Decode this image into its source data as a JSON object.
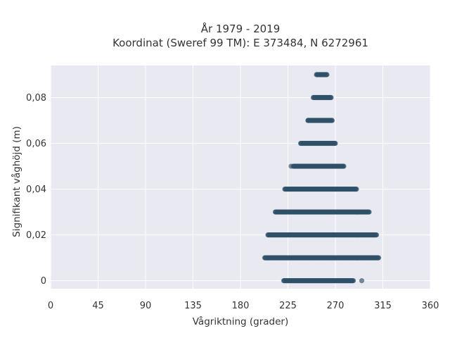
{
  "chart_data": {
    "type": "scatter",
    "title_line1": "År 1979 - 2019",
    "title_line2": "Koordinat (Sweref 99 TM): E 373484, N 6272961",
    "xlabel": "Vågriktning (grader)",
    "ylabel": "Signifikant våghöjd (m)",
    "xlim": [
      0,
      360
    ],
    "ylim": [
      -0.0035,
      0.094
    ],
    "xticks": [
      0,
      45,
      90,
      135,
      180,
      225,
      270,
      315,
      360
    ],
    "xtick_labels": [
      "0",
      "45",
      "90",
      "135",
      "180",
      "225",
      "270",
      "315",
      "360"
    ],
    "yticks": [
      0,
      0.02,
      0.04,
      0.06,
      0.08
    ],
    "ytick_labels": [
      "0",
      "0,02",
      "0,04",
      "0,06",
      "0,08"
    ],
    "grid": true,
    "marker_color": "#2f5168",
    "background_color": "#e9e9f1",
    "bands": [
      {
        "y": 0.0,
        "x_min": 221,
        "x_max": 287
      },
      {
        "y": 0.01,
        "x_min": 203,
        "x_max": 311
      },
      {
        "y": 0.02,
        "x_min": 206,
        "x_max": 309
      },
      {
        "y": 0.03,
        "x_min": 213,
        "x_max": 302
      },
      {
        "y": 0.04,
        "x_min": 222,
        "x_max": 290
      },
      {
        "y": 0.05,
        "x_min": 230,
        "x_max": 278
      },
      {
        "y": 0.06,
        "x_min": 237,
        "x_max": 270
      },
      {
        "y": 0.07,
        "x_min": 244,
        "x_max": 267
      },
      {
        "y": 0.08,
        "x_min": 249,
        "x_max": 266
      },
      {
        "y": 0.09,
        "x_min": 252,
        "x_max": 262
      }
    ],
    "outliers": [
      {
        "x": 295,
        "y": 0.0
      },
      {
        "x": 228,
        "y": 0.05
      },
      {
        "x": 244,
        "y": 0.07
      }
    ]
  }
}
